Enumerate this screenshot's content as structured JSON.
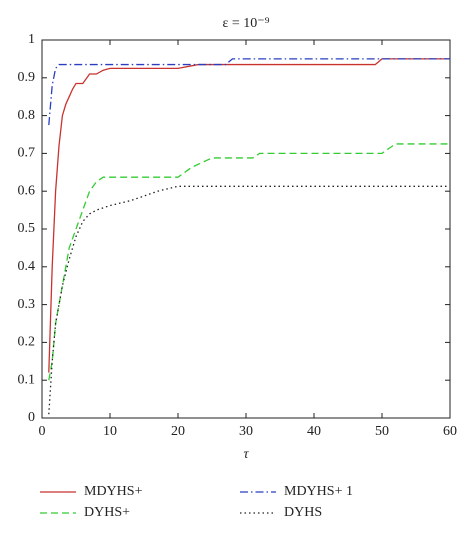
{
  "chart_data": {
    "type": "line",
    "title": "ε = 10⁻⁹",
    "x_label": "τ",
    "xlim": [
      0,
      60
    ],
    "ylim": [
      0,
      1
    ],
    "xticks": [
      0,
      10,
      20,
      30,
      40,
      50,
      60
    ],
    "yticks": [
      0,
      0.1,
      0.2,
      0.3,
      0.4,
      0.5,
      0.6,
      0.7,
      0.8,
      0.9,
      1
    ],
    "grid": false,
    "legend": "bottom",
    "series": [
      {
        "name": "MDYHS+",
        "color": "#c8332f",
        "dash": "solid",
        "x": [
          1,
          1.5,
          2,
          2.5,
          3,
          3.5,
          4,
          4.5,
          5,
          6,
          7,
          8,
          9,
          10,
          20,
          23,
          49,
          50,
          60
        ],
        "values": [
          0.12,
          0.4,
          0.6,
          0.72,
          0.8,
          0.83,
          0.85,
          0.87,
          0.885,
          0.885,
          0.91,
          0.91,
          0.92,
          0.925,
          0.925,
          0.935,
          0.935,
          0.95,
          0.95
        ]
      },
      {
        "name": "MDYHS+ 1",
        "color": "#2a3fbf",
        "dash": "dashdot",
        "x": [
          1,
          1.5,
          2,
          2.5,
          27,
          28,
          60
        ],
        "values": [
          0.775,
          0.88,
          0.925,
          0.935,
          0.935,
          0.95,
          0.95
        ]
      },
      {
        "name": "DYHS+",
        "color": "#33cc33",
        "dash": "dashed",
        "x": [
          1,
          1.5,
          2,
          2.5,
          3,
          3.5,
          4,
          5,
          6,
          7,
          8,
          9,
          20,
          21,
          22,
          25,
          31,
          32,
          50,
          51,
          52,
          60
        ],
        "values": [
          0.1,
          0.15,
          0.25,
          0.3,
          0.35,
          0.4,
          0.45,
          0.5,
          0.55,
          0.6,
          0.625,
          0.637,
          0.637,
          0.65,
          0.663,
          0.688,
          0.688,
          0.7,
          0.7,
          0.713,
          0.725,
          0.725
        ]
      },
      {
        "name": "DYHS",
        "color": "#222222",
        "dash": "dotted",
        "x": [
          1,
          1.5,
          2,
          2.5,
          3,
          4,
          5,
          6,
          7,
          8,
          10,
          13,
          15,
          17,
          20,
          60
        ],
        "values": [
          0.01,
          0.15,
          0.25,
          0.3,
          0.35,
          0.42,
          0.48,
          0.52,
          0.54,
          0.55,
          0.562,
          0.575,
          0.587,
          0.6,
          0.613,
          0.613
        ]
      }
    ]
  }
}
